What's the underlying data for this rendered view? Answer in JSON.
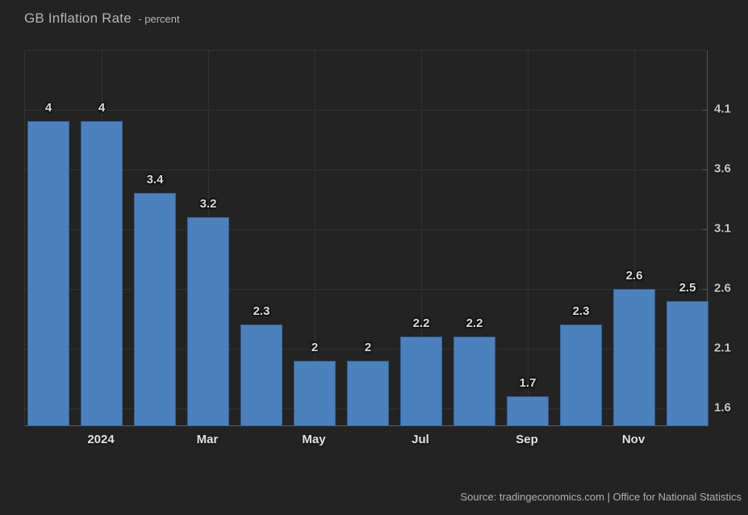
{
  "header": {
    "title": "GB Inflation Rate",
    "subtitle": "- percent"
  },
  "footer": {
    "source": "Source: tradingeconomics.com | Office for National Statistics"
  },
  "colors": {
    "background": "#232323",
    "bar": "#4d81bd",
    "grid": "#404040",
    "axis": "#606060",
    "label_text": "#dcdcdc",
    "tick_text": "#c9c9c9"
  },
  "chart_data": {
    "type": "bar",
    "title": "GB Inflation Rate",
    "ylabel": "percent",
    "values": [
      4,
      4,
      3.4,
      3.2,
      2.3,
      2,
      2,
      2.2,
      2.2,
      1.7,
      2.3,
      2.6,
      2.5
    ],
    "bar_labels": [
      "4",
      "4",
      "3.4",
      "3.2",
      "2.3",
      "2",
      "2",
      "2.2",
      "2.2",
      "1.7",
      "2.3",
      "2.6",
      "2.5"
    ],
    "x_ticks": [
      {
        "label": "2024",
        "bar_index": 1
      },
      {
        "label": "Mar",
        "bar_index": 3
      },
      {
        "label": "May",
        "bar_index": 5
      },
      {
        "label": "Jul",
        "bar_index": 7
      },
      {
        "label": "Sep",
        "bar_index": 9
      },
      {
        "label": "Nov",
        "bar_index": 11
      }
    ],
    "y_ticks": [
      1.6,
      2.1,
      2.6,
      3.1,
      3.6,
      4.1
    ],
    "y_tick_labels": [
      "1.6",
      "2.1",
      "2.6",
      "3.1",
      "3.6",
      "4.1"
    ],
    "ylim": [
      1.45,
      4.59
    ],
    "grid": true,
    "legend": false,
    "y_axis_position": "right"
  }
}
